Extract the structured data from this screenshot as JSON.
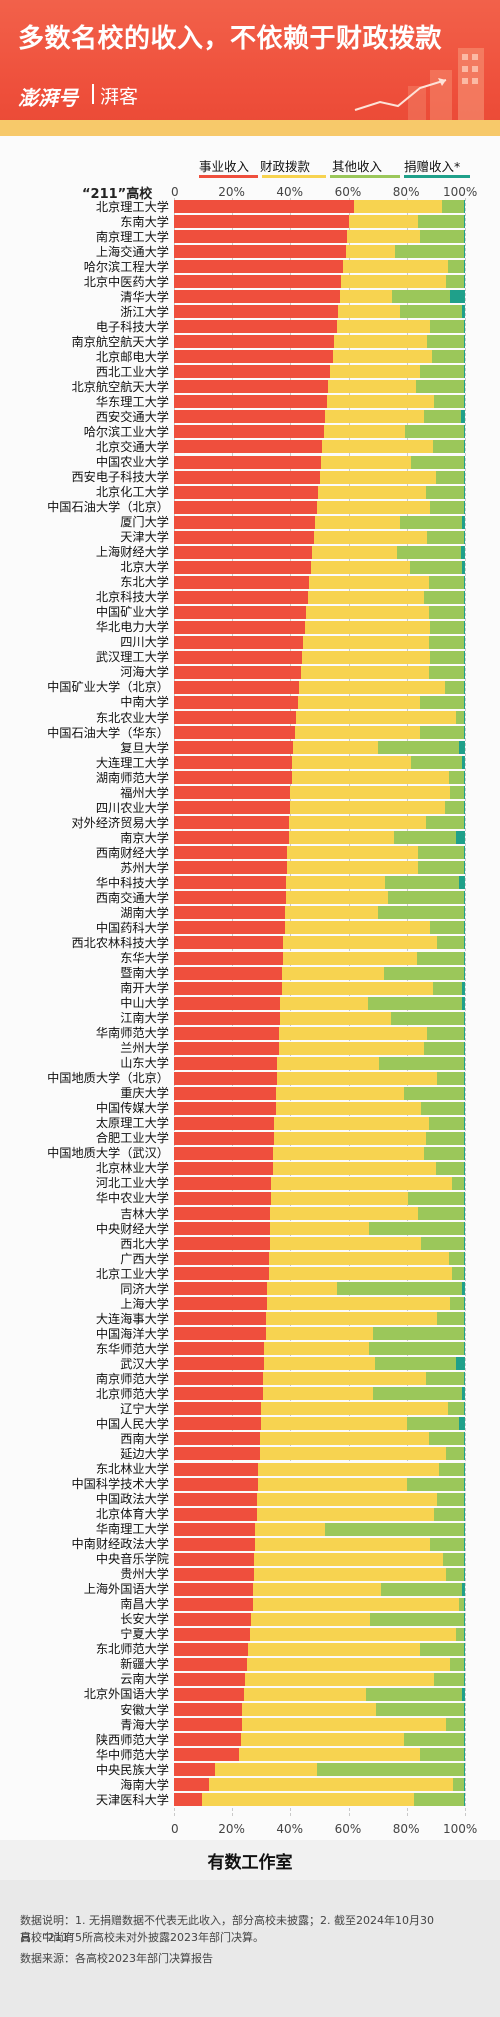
{
  "header": {
    "title": "多数名校的收入，不依赖于财政拨款",
    "brand": "澎湃号",
    "sub": "湃客"
  },
  "colors": {
    "bg": "#ee4f3b",
    "band": "#f7c96a",
    "career": "#ef4f3d",
    "fiscal": "#f7d350",
    "other": "#9bc75a",
    "donation": "#1fa08a"
  },
  "chart_data": {
    "type": "bar",
    "orientation": "horizontal",
    "stacked": "100%",
    "column_title": "“211”高校",
    "ticks": [
      "0",
      "20%",
      "40%",
      "60%",
      "80%",
      "100%"
    ],
    "xlim": [
      0,
      100
    ],
    "legend": [
      "事业收入",
      "财政拨款",
      "其他收入",
      "捐赠收入*"
    ],
    "rows": [
      {
        "name": "北京理工大学",
        "career": 62,
        "fiscal": 30,
        "other": 7.5,
        "donation": 0.5
      },
      {
        "name": "东南大学",
        "career": 60,
        "fiscal": 24,
        "other": 15.5,
        "donation": 0.5
      },
      {
        "name": "南京理工大学",
        "career": 59.5,
        "fiscal": 25,
        "other": 15,
        "donation": 0.5
      },
      {
        "name": "上海交通大学",
        "career": 59,
        "fiscal": 17,
        "other": 23.5,
        "donation": 0.5
      },
      {
        "name": "哈尔滨工程大学",
        "career": 58,
        "fiscal": 36,
        "other": 5.5,
        "donation": 0.5
      },
      {
        "name": "北京中医药大学",
        "career": 57.5,
        "fiscal": 36,
        "other": 6,
        "donation": 0.5
      },
      {
        "name": "清华大学",
        "career": 57,
        "fiscal": 18,
        "other": 20,
        "donation": 5
      },
      {
        "name": "浙江大学",
        "career": 56.5,
        "fiscal": 21,
        "other": 21.5,
        "donation": 1
      },
      {
        "name": "电子科技大学",
        "career": 56,
        "fiscal": 32,
        "other": 11.5,
        "donation": 0.5
      },
      {
        "name": "南京航空航天大学",
        "career": 55,
        "fiscal": 32,
        "other": 12.5,
        "donation": 0.5
      },
      {
        "name": "北京邮电大学",
        "career": 54.5,
        "fiscal": 34,
        "other": 11,
        "donation": 0.5
      },
      {
        "name": "西北工业大学",
        "career": 53.5,
        "fiscal": 31,
        "other": 15,
        "donation": 0.5
      },
      {
        "name": "北京航空航天大学",
        "career": 53,
        "fiscal": 30,
        "other": 16.5,
        "donation": 0.5
      },
      {
        "name": "华东理工大学",
        "career": 52.5,
        "fiscal": 37,
        "other": 10,
        "donation": 0.5
      },
      {
        "name": "西安交通大学",
        "career": 52,
        "fiscal": 34,
        "other": 12.5,
        "donation": 1.5
      },
      {
        "name": "哈尔滨工业大学",
        "career": 51.5,
        "fiscal": 28,
        "other": 20,
        "donation": 0.5
      },
      {
        "name": "北京交通大学",
        "career": 51,
        "fiscal": 38,
        "other": 10.5,
        "donation": 0.5
      },
      {
        "name": "中国农业大学",
        "career": 50.5,
        "fiscal": 31,
        "other": 18,
        "donation": 0.5
      },
      {
        "name": "西安电子科技大学",
        "career": 50,
        "fiscal": 40,
        "other": 9.5,
        "donation": 0.5
      },
      {
        "name": "北京化工大学",
        "career": 49.5,
        "fiscal": 37,
        "other": 13,
        "donation": 0.5
      },
      {
        "name": "中国石油大学（北京）",
        "career": 49,
        "fiscal": 39,
        "other": 11.5,
        "donation": 0.5
      },
      {
        "name": "厦门大学",
        "career": 48.5,
        "fiscal": 29,
        "other": 21.5,
        "donation": 1
      },
      {
        "name": "天津大学",
        "career": 48,
        "fiscal": 39,
        "other": 12.5,
        "donation": 0.5
      },
      {
        "name": "上海财经大学",
        "career": 47.5,
        "fiscal": 29,
        "other": 22,
        "donation": 1.5
      },
      {
        "name": "北京大学",
        "career": 47,
        "fiscal": 34,
        "other": 18,
        "donation": 1
      },
      {
        "name": "东北大学",
        "career": 46.5,
        "fiscal": 41,
        "other": 12,
        "donation": 0.5
      },
      {
        "name": "北京科技大学",
        "career": 46,
        "fiscal": 40,
        "other": 13.5,
        "donation": 0.5
      },
      {
        "name": "中国矿业大学",
        "career": 45.5,
        "fiscal": 42,
        "other": 12,
        "donation": 0.5
      },
      {
        "name": "华北电力大学",
        "career": 45,
        "fiscal": 43,
        "other": 11.5,
        "donation": 0.5
      },
      {
        "name": "四川大学",
        "career": 44.5,
        "fiscal": 43,
        "other": 12,
        "donation": 0.5
      },
      {
        "name": "武汉理工大学",
        "career": 44,
        "fiscal": 44,
        "other": 11.5,
        "donation": 0.5
      },
      {
        "name": "河海大学",
        "career": 43.5,
        "fiscal": 44,
        "other": 12,
        "donation": 0.5
      },
      {
        "name": "中国矿业大学（北京）",
        "career": 43,
        "fiscal": 50,
        "other": 6.5,
        "donation": 0.5
      },
      {
        "name": "中南大学",
        "career": 42.5,
        "fiscal": 42,
        "other": 15,
        "donation": 0.5
      },
      {
        "name": "东北农业大学",
        "career": 42,
        "fiscal": 55,
        "other": 2.5,
        "donation": 0.5
      },
      {
        "name": "中国石油大学（华东）",
        "career": 41.5,
        "fiscal": 43,
        "other": 15,
        "donation": 0.5
      },
      {
        "name": "复旦大学",
        "career": 41,
        "fiscal": 29,
        "other": 28,
        "donation": 2
      },
      {
        "name": "大连理工大学",
        "career": 40.5,
        "fiscal": 41,
        "other": 17.5,
        "donation": 1
      },
      {
        "name": "湖南师范大学",
        "career": 40.5,
        "fiscal": 54,
        "other": 5,
        "donation": 0.5
      },
      {
        "name": "福州大学",
        "career": 40,
        "fiscal": 55,
        "other": 4.5,
        "donation": 0.5
      },
      {
        "name": "四川农业大学",
        "career": 40,
        "fiscal": 53,
        "other": 6.5,
        "donation": 0.5
      },
      {
        "name": "对外经济贸易大学",
        "career": 39.5,
        "fiscal": 47,
        "other": 13,
        "donation": 0.5
      },
      {
        "name": "南京大学",
        "career": 39.5,
        "fiscal": 36,
        "other": 21.5,
        "donation": 3
      },
      {
        "name": "西南财经大学",
        "career": 39,
        "fiscal": 45,
        "other": 15.5,
        "donation": 0.5
      },
      {
        "name": "苏州大学",
        "career": 39,
        "fiscal": 45,
        "other": 15.5,
        "donation": 0.5
      },
      {
        "name": "华中科技大学",
        "career": 38.5,
        "fiscal": 34,
        "other": 25.5,
        "donation": 2
      },
      {
        "name": "西南交通大学",
        "career": 38.5,
        "fiscal": 35,
        "other": 26,
        "donation": 0.5
      },
      {
        "name": "湖南大学",
        "career": 38,
        "fiscal": 32,
        "other": 29.5,
        "donation": 0.5
      },
      {
        "name": "中国药科大学",
        "career": 38,
        "fiscal": 50,
        "other": 11.5,
        "donation": 0.5
      },
      {
        "name": "西北农林科技大学",
        "career": 37.5,
        "fiscal": 53,
        "other": 9,
        "donation": 0.5
      },
      {
        "name": "东华大学",
        "career": 37.5,
        "fiscal": 46,
        "other": 16,
        "donation": 0.5
      },
      {
        "name": "暨南大学",
        "career": 37,
        "fiscal": 35,
        "other": 27.5,
        "donation": 0.5
      },
      {
        "name": "南开大学",
        "career": 37,
        "fiscal": 52,
        "other": 10,
        "donation": 1
      },
      {
        "name": "中山大学",
        "career": 36.5,
        "fiscal": 30,
        "other": 32.5,
        "donation": 1
      },
      {
        "name": "江南大学",
        "career": 36.5,
        "fiscal": 38,
        "other": 25,
        "donation": 0.5
      },
      {
        "name": "华南师范大学",
        "career": 36,
        "fiscal": 51,
        "other": 12.5,
        "donation": 0.5
      },
      {
        "name": "兰州大学",
        "career": 36,
        "fiscal": 50,
        "other": 13.5,
        "donation": 0.5
      },
      {
        "name": "山东大学",
        "career": 35.5,
        "fiscal": 35,
        "other": 29,
        "donation": 0.5
      },
      {
        "name": "中国地质大学（北京）",
        "career": 35.5,
        "fiscal": 55,
        "other": 9,
        "donation": 0.5
      },
      {
        "name": "重庆大学",
        "career": 35,
        "fiscal": 44,
        "other": 20.5,
        "donation": 0.5
      },
      {
        "name": "中国传媒大学",
        "career": 35,
        "fiscal": 50,
        "other": 14.5,
        "donation": 0.5
      },
      {
        "name": "太原理工大学",
        "career": 34.5,
        "fiscal": 53,
        "other": 12,
        "donation": 0.5
      },
      {
        "name": "合肥工业大学",
        "career": 34.5,
        "fiscal": 52,
        "other": 13,
        "donation": 0.5
      },
      {
        "name": "中国地质大学（武汉）",
        "career": 34,
        "fiscal": 52,
        "other": 13.5,
        "donation": 0.5
      },
      {
        "name": "北京林业大学",
        "career": 34,
        "fiscal": 56,
        "other": 9.5,
        "donation": 0.5
      },
      {
        "name": "河北工业大学",
        "career": 33.5,
        "fiscal": 62,
        "other": 4,
        "donation": 0.5
      },
      {
        "name": "华中农业大学",
        "career": 33.5,
        "fiscal": 47,
        "other": 19,
        "donation": 0.5
      },
      {
        "name": "吉林大学",
        "career": 33,
        "fiscal": 51,
        "other": 15.5,
        "donation": 0.5
      },
      {
        "name": "中央财经大学",
        "career": 33,
        "fiscal": 34,
        "other": 32.5,
        "donation": 0.5
      },
      {
        "name": "西北大学",
        "career": 33,
        "fiscal": 52,
        "other": 14.5,
        "donation": 0.5
      },
      {
        "name": "广西大学",
        "career": 32.5,
        "fiscal": 62,
        "other": 5,
        "donation": 0.5
      },
      {
        "name": "北京工业大学",
        "career": 32.5,
        "fiscal": 63,
        "other": 4,
        "donation": 0.5
      },
      {
        "name": "同济大学",
        "career": 32,
        "fiscal": 24,
        "other": 43,
        "donation": 1
      },
      {
        "name": "上海大学",
        "career": 32,
        "fiscal": 63,
        "other": 4.5,
        "donation": 0.5
      },
      {
        "name": "大连海事大学",
        "career": 31.5,
        "fiscal": 59,
        "other": 9,
        "donation": 0.5
      },
      {
        "name": "中国海洋大学",
        "career": 31.5,
        "fiscal": 37,
        "other": 31,
        "donation": 0.5
      },
      {
        "name": "东华师范大学",
        "career": 31,
        "fiscal": 36,
        "other": 32.5,
        "donation": 0.5
      },
      {
        "name": "武汉大学",
        "career": 31,
        "fiscal": 38,
        "other": 28,
        "donation": 3
      },
      {
        "name": "南京师范大学",
        "career": 30.5,
        "fiscal": 56,
        "other": 13,
        "donation": 0.5
      },
      {
        "name": "北京师范大学",
        "career": 30.5,
        "fiscal": 38,
        "other": 30.5,
        "donation": 1
      },
      {
        "name": "辽宁大学",
        "career": 30,
        "fiscal": 64,
        "other": 5.5,
        "donation": 0.5
      },
      {
        "name": "中国人民大学",
        "career": 30,
        "fiscal": 50,
        "other": 18,
        "donation": 2
      },
      {
        "name": "西南大学",
        "career": 29.5,
        "fiscal": 58,
        "other": 12,
        "donation": 0.5
      },
      {
        "name": "延边大学",
        "career": 29.5,
        "fiscal": 64,
        "other": 6,
        "donation": 0.5
      },
      {
        "name": "东北林业大学",
        "career": 29,
        "fiscal": 62,
        "other": 8.5,
        "donation": 0.5
      },
      {
        "name": "中国科学技术大学",
        "career": 29,
        "fiscal": 51,
        "other": 19.5,
        "donation": 0.5
      },
      {
        "name": "中国政法大学",
        "career": 28.5,
        "fiscal": 62,
        "other": 9,
        "donation": 0.5
      },
      {
        "name": "北京体育大学",
        "career": 28.5,
        "fiscal": 61,
        "other": 10,
        "donation": 0.5
      },
      {
        "name": "华南理工大学",
        "career": 28,
        "fiscal": 24,
        "other": 47.5,
        "donation": 0.5
      },
      {
        "name": "中南财经政法大学",
        "career": 28,
        "fiscal": 60,
        "other": 11.5,
        "donation": 0.5
      },
      {
        "name": "中央音乐学院",
        "career": 27.5,
        "fiscal": 65,
        "other": 7,
        "donation": 0.5
      },
      {
        "name": "贵州大学",
        "career": 27.5,
        "fiscal": 66,
        "other": 6,
        "donation": 0.5
      },
      {
        "name": "上海外国语大学",
        "career": 27,
        "fiscal": 44,
        "other": 28,
        "donation": 1
      },
      {
        "name": "南昌大学",
        "career": 27,
        "fiscal": 71,
        "other": 1.5,
        "donation": 0.5
      },
      {
        "name": "长安大学",
        "career": 26.5,
        "fiscal": 41,
        "other": 32,
        "donation": 0.5
      },
      {
        "name": "宁夏大学",
        "career": 26,
        "fiscal": 71,
        "other": 2.5,
        "donation": 0.5
      },
      {
        "name": "东北师范大学",
        "career": 25.5,
        "fiscal": 59,
        "other": 15,
        "donation": 0.5
      },
      {
        "name": "新疆大学",
        "career": 25,
        "fiscal": 70,
        "other": 4.5,
        "donation": 0.5
      },
      {
        "name": "云南大学",
        "career": 24.5,
        "fiscal": 65,
        "other": 10,
        "donation": 0.5
      },
      {
        "name": "北京外国语大学",
        "career": 24,
        "fiscal": 42,
        "other": 33,
        "donation": 1
      },
      {
        "name": "安徽大学",
        "career": 23.5,
        "fiscal": 46,
        "other": 30,
        "donation": 0.5
      },
      {
        "name": "青海大学",
        "career": 23.5,
        "fiscal": 70,
        "other": 6,
        "donation": 0.5
      },
      {
        "name": "陕西师范大学",
        "career": 23,
        "fiscal": 56,
        "other": 20.5,
        "donation": 0.5
      },
      {
        "name": "华中师范大学",
        "career": 22.5,
        "fiscal": 62,
        "other": 15,
        "donation": 0.5
      },
      {
        "name": "中央民族大学",
        "career": 14,
        "fiscal": 35,
        "other": 50.5,
        "donation": 0.5
      },
      {
        "name": "海南大学",
        "career": 12,
        "fiscal": 84,
        "other": 3.5,
        "donation": 0.5
      },
      {
        "name": "天津医科大学",
        "career": 9.5,
        "fiscal": 73,
        "other": 17,
        "donation": 0.5
      }
    ]
  },
  "footer": {
    "studio": "有数工作室",
    "note1": "数据说明：1. 无捐赠数据不代表无此收入，部分高校未披露；2. 截至2024年10月30日，“211”",
    "note2": "高校中尚有5所高校未对外披露2023年部门决算。",
    "source": "数据来源：各高校2023年部门决算报告"
  }
}
